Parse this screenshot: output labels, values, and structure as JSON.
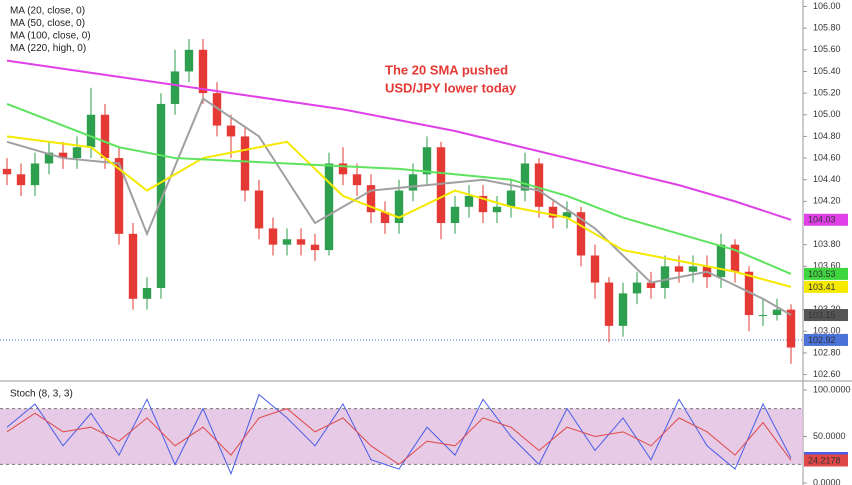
{
  "chart_data": [
    {
      "type": "candlestick",
      "annotation": [
        "The 20 SMA pushed",
        "USD/JPY lower today"
      ],
      "ylim": [
        102.55,
        106.06
      ],
      "yticks": [
        {
          "value": 106,
          "label": "106.00"
        },
        {
          "value": 105.8,
          "label": "105.80"
        },
        {
          "value": 105.6,
          "label": "105.60"
        },
        {
          "value": 105.4,
          "label": "105.40"
        },
        {
          "value": 105.2,
          "label": "105.20"
        },
        {
          "value": 105,
          "label": "105.00"
        },
        {
          "value": 104.8,
          "label": "104.80"
        },
        {
          "value": 104.6,
          "label": "104.60"
        },
        {
          "value": 104.4,
          "label": "104.40"
        },
        {
          "value": 104.2,
          "label": "104.20"
        },
        {
          "value": 104,
          "label": "104.00"
        },
        {
          "value": 103.8,
          "label": "103.80"
        },
        {
          "value": 103.6,
          "label": "103.60"
        },
        {
          "value": 103.4,
          "label": "103.40"
        },
        {
          "value": 103.2,
          "label": "103.20"
        },
        {
          "value": 103,
          "label": "103.00"
        },
        {
          "value": 102.8,
          "label": "102.80"
        },
        {
          "value": 102.6,
          "label": "102.60"
        }
      ],
      "up_color": "#2e9e4f",
      "down_color": "#e53935",
      "open": [
        104.5,
        104.45,
        104.35,
        104.55,
        104.65,
        104.6,
        104.7,
        105.0,
        104.6,
        103.9,
        103.3,
        103.4,
        105.1,
        105.4,
        105.6,
        105.2,
        104.9,
        104.8,
        104.3,
        103.95,
        103.8,
        103.85,
        103.8,
        103.75,
        104.55,
        104.45,
        104.35,
        104.1,
        104.0,
        104.3,
        104.45,
        104.7,
        104.0,
        104.15,
        104.25,
        104.1,
        104.15,
        104.3,
        104.55,
        104.15,
        104.05,
        104.1,
        103.7,
        103.45,
        103.05,
        103.35,
        103.45,
        103.4,
        103.6,
        103.55,
        103.6,
        103.5,
        103.8,
        103.55,
        103.15,
        103.15,
        103.2
      ],
      "high": [
        104.6,
        104.55,
        104.65,
        104.75,
        104.75,
        104.8,
        105.25,
        105.1,
        104.7,
        104.0,
        103.5,
        105.2,
        105.6,
        105.7,
        105.7,
        105.3,
        105.0,
        104.9,
        104.4,
        104.05,
        103.95,
        103.95,
        103.9,
        104.65,
        104.7,
        104.55,
        104.45,
        104.2,
        104.4,
        104.55,
        104.8,
        104.75,
        104.25,
        104.35,
        104.35,
        104.25,
        104.4,
        104.65,
        104.6,
        104.2,
        104.2,
        104.15,
        103.8,
        103.5,
        103.45,
        103.55,
        103.55,
        103.7,
        103.7,
        103.7,
        103.7,
        103.9,
        103.85,
        103.6,
        103.3,
        103.3,
        103.25
      ],
      "low": [
        104.35,
        104.25,
        104.25,
        104.45,
        104.5,
        104.5,
        104.6,
        104.5,
        103.8,
        103.2,
        103.2,
        103.3,
        105.0,
        105.3,
        105.1,
        104.8,
        104.6,
        104.2,
        103.85,
        103.7,
        103.7,
        103.7,
        103.65,
        103.7,
        104.35,
        104.25,
        104.0,
        103.9,
        103.9,
        104.2,
        104.35,
        103.85,
        103.9,
        104.05,
        104.0,
        104.0,
        104.05,
        104.2,
        104.05,
        103.95,
        103.95,
        103.6,
        103.3,
        102.9,
        102.95,
        103.25,
        103.3,
        103.3,
        103.45,
        103.45,
        103.4,
        103.4,
        103.45,
        103.0,
        103.05,
        103.1,
        102.7
      ],
      "close": [
        104.45,
        104.35,
        104.55,
        104.65,
        104.6,
        104.7,
        105.0,
        104.6,
        103.9,
        103.3,
        103.4,
        105.1,
        105.4,
        105.6,
        105.2,
        104.9,
        104.8,
        104.3,
        103.95,
        103.8,
        103.85,
        103.8,
        103.75,
        104.55,
        104.45,
        104.35,
        104.1,
        104.0,
        104.3,
        104.45,
        104.7,
        104.0,
        104.15,
        104.25,
        104.1,
        104.15,
        104.3,
        104.55,
        104.15,
        104.05,
        104.1,
        103.7,
        103.45,
        103.05,
        103.35,
        103.45,
        103.4,
        103.6,
        103.55,
        103.6,
        103.5,
        103.8,
        103.55,
        103.15,
        103.15,
        103.2,
        102.85
      ],
      "series": [
        {
          "name": "MA (20, close, 0)",
          "color": "#a0a0a0",
          "x": [
            0,
            4,
            8,
            10,
            14,
            18,
            22,
            26,
            30,
            34,
            38,
            42,
            46,
            50,
            54,
            56
          ],
          "values": [
            104.75,
            104.6,
            104.55,
            103.9,
            105.15,
            104.8,
            104.0,
            104.3,
            104.35,
            104.4,
            104.3,
            103.95,
            103.45,
            103.55,
            103.3,
            103.15
          ]
        },
        {
          "name": "MA (50, close, 0)",
          "color": "#f5e900",
          "x": [
            0,
            6,
            10,
            14,
            20,
            24,
            28,
            32,
            36,
            40,
            44,
            48,
            52,
            56
          ],
          "values": [
            104.8,
            104.7,
            104.3,
            104.6,
            104.75,
            104.25,
            104.05,
            104.3,
            104.15,
            104.05,
            103.75,
            103.65,
            103.55,
            103.41
          ]
        },
        {
          "name": "MA (100, close, 0)",
          "color": "#5ee35e",
          "x": [
            0,
            4,
            8,
            12,
            20,
            28,
            36,
            40,
            44,
            48,
            52,
            56
          ],
          "values": [
            105.1,
            104.9,
            104.7,
            104.6,
            104.55,
            104.5,
            104.4,
            104.25,
            104.05,
            103.9,
            103.75,
            103.53
          ]
        },
        {
          "name": "MA (220, high, 0)",
          "color": "#e040e8",
          "x": [
            0,
            8,
            16,
            24,
            32,
            40,
            48,
            52,
            56
          ],
          "values": [
            105.5,
            105.35,
            105.2,
            105.05,
            104.85,
            104.6,
            104.35,
            104.2,
            104.03
          ]
        }
      ],
      "price_line": 102.92,
      "price_tags": [
        {
          "value": 104.03,
          "color": "#e040e8"
        },
        {
          "value": 103.53,
          "color": "#3ed63e"
        },
        {
          "value": 103.41,
          "color": "#f5e900"
        },
        {
          "value": 103.15,
          "color": "#555555"
        },
        {
          "value": 102.92,
          "color": "#4a72d8"
        }
      ]
    },
    {
      "type": "line",
      "title": "Stoch (8, 3, 3)",
      "ylim": [
        0,
        100
      ],
      "yticks": [
        {
          "value": 100,
          "label": "100.0000"
        },
        {
          "value": 50,
          "label": "50.0000"
        },
        {
          "value": 0,
          "label": "0.0000"
        }
      ],
      "band": [
        20,
        80
      ],
      "band_color": "#dcb4dc",
      "series": [
        {
          "color": "#4a5ee8",
          "x": [
            0,
            2,
            4,
            6,
            8,
            10,
            12,
            14,
            16,
            18,
            20,
            22,
            24,
            26,
            28,
            30,
            32,
            34,
            36,
            38,
            40,
            42,
            44,
            46,
            48,
            50,
            52,
            54,
            56
          ],
          "values": [
            60,
            85,
            40,
            75,
            30,
            90,
            20,
            80,
            10,
            95,
            70,
            40,
            85,
            25,
            15,
            60,
            30,
            90,
            50,
            20,
            80,
            35,
            70,
            25,
            90,
            40,
            15,
            85,
            26.9014
          ]
        },
        {
          "color": "#e04848",
          "x": [
            0,
            2,
            4,
            6,
            8,
            10,
            12,
            14,
            16,
            18,
            20,
            22,
            24,
            26,
            28,
            30,
            32,
            34,
            36,
            38,
            40,
            42,
            44,
            46,
            48,
            50,
            52,
            54,
            56
          ],
          "values": [
            55,
            75,
            55,
            60,
            45,
            70,
            40,
            60,
            30,
            70,
            80,
            55,
            70,
            40,
            20,
            45,
            40,
            70,
            60,
            35,
            60,
            50,
            55,
            40,
            70,
            55,
            30,
            65,
            24.2178
          ]
        }
      ],
      "price_tags": [
        {
          "value": 26.9014,
          "color": "#4a5ee8"
        },
        {
          "value": 24.2178,
          "color": "#e04848"
        }
      ]
    }
  ]
}
